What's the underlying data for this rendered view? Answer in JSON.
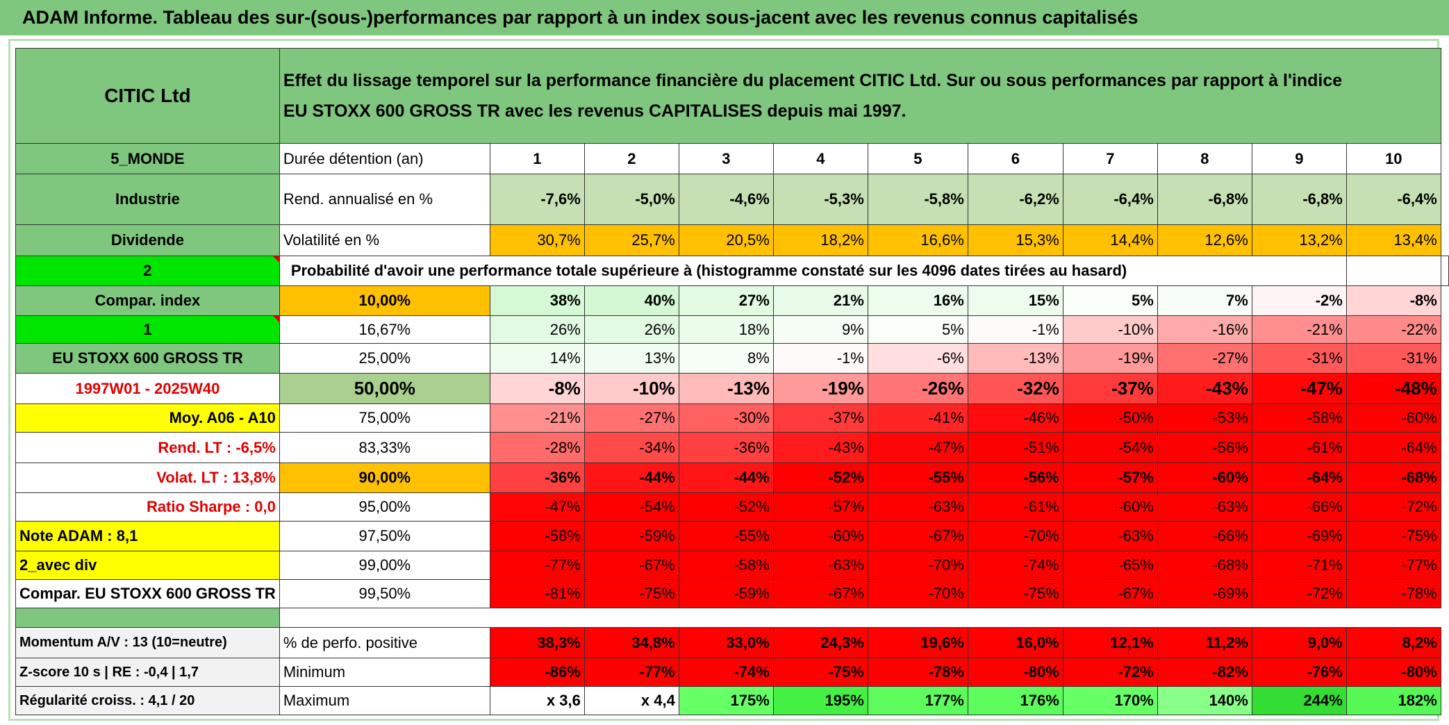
{
  "title": "ADAM Informe. Tableau des sur-(sous-)performances par rapport à un index sous-jacent avec les revenus connus capitalisés",
  "header": {
    "name": "CITIC Ltd",
    "description": [
      "Effet du lissage temporel sur la performance financière du placement CITIC Ltd. Sur ou sous performances par rapport à l'indice",
      "EU STOXX 600 GROSS TR avec les revenus CAPITALISES depuis mai 1997."
    ]
  },
  "rows": [
    {
      "left": "5_MONDE",
      "label": "Durée détention (an)",
      "cells": [
        "1",
        "2",
        "3",
        "4",
        "5",
        "6",
        "7",
        "8",
        "9",
        "10"
      ]
    },
    {
      "left": "Industrie",
      "label": "Rend. annualisé en %",
      "fill": "#c6e0b4",
      "cells": [
        "-7,6%",
        "-5,0%",
        "-4,6%",
        "-5,3%",
        "-5,8%",
        "-6,2%",
        "-6,4%",
        "-6,8%",
        "-6,8%",
        "-6,4%"
      ]
    },
    {
      "left": "Dividende",
      "label": "Volatilité en %",
      "fill": "#ffc000",
      "cells": [
        "30,7%",
        "25,7%",
        "20,5%",
        "18,2%",
        "16,6%",
        "15,3%",
        "14,4%",
        "12,6%",
        "13,2%",
        "13,4%"
      ]
    },
    {
      "left": "2",
      "label": "Probabilité d'avoir une performance totale supérieure à (histogramme constaté sur les 4096 dates tirées au hasard)"
    },
    {
      "left": "Compar. index",
      "quantile": "10,00%",
      "cells": [
        "38%",
        "40%",
        "27%",
        "21%",
        "16%",
        "15%",
        "5%",
        "7%",
        "-2%",
        "-8%"
      ]
    },
    {
      "left": "1",
      "quantile": "16,67%",
      "cells": [
        "26%",
        "26%",
        "18%",
        "9%",
        "5%",
        "-1%",
        "-10%",
        "-16%",
        "-21%",
        "-22%"
      ]
    },
    {
      "left": "EU STOXX 600 GROSS TR",
      "quantile": "25,00%",
      "cells": [
        "14%",
        "13%",
        "8%",
        "-1%",
        "-6%",
        "-13%",
        "-19%",
        "-27%",
        "-31%",
        "-31%"
      ]
    },
    {
      "left": "1997W01 - 2025W40",
      "quantile": "50,00%",
      "cells": [
        "-8%",
        "-10%",
        "-13%",
        "-19%",
        "-26%",
        "-32%",
        "-37%",
        "-43%",
        "-47%",
        "-48%"
      ]
    },
    {
      "left": "Moy. A06 - A10",
      "quantile": "75,00%",
      "cells": [
        "-21%",
        "-27%",
        "-30%",
        "-37%",
        "-41%",
        "-46%",
        "-50%",
        "-53%",
        "-58%",
        "-60%"
      ]
    },
    {
      "left": "Rend. LT :   -6,5%",
      "quantile": "83,33%",
      "cells": [
        "-28%",
        "-34%",
        "-36%",
        "-43%",
        "-47%",
        "-51%",
        "-54%",
        "-56%",
        "-61%",
        "-64%"
      ]
    },
    {
      "left": "Volat. LT :   13,8%",
      "quantile": "90,00%",
      "cells": [
        "-36%",
        "-44%",
        "-44%",
        "-52%",
        "-55%",
        "-56%",
        "-57%",
        "-60%",
        "-64%",
        "-68%"
      ]
    },
    {
      "left": "Ratio Sharpe :    0,0",
      "quantile": "95,00%",
      "cells": [
        "-47%",
        "-54%",
        "-52%",
        "-57%",
        "-63%",
        "-61%",
        "-60%",
        "-63%",
        "-66%",
        "-72%"
      ]
    },
    {
      "left": "Note ADAM : 8,1",
      "quantile": "97,50%",
      "cells": [
        "-58%",
        "-59%",
        "-55%",
        "-60%",
        "-67%",
        "-70%",
        "-63%",
        "-66%",
        "-69%",
        "-75%"
      ]
    },
    {
      "left": "2_avec div",
      "quantile": "99,00%",
      "cells": [
        "-77%",
        "-67%",
        "-58%",
        "-63%",
        "-70%",
        "-74%",
        "-65%",
        "-68%",
        "-71%",
        "-77%"
      ]
    },
    {
      "left": "Compar. EU STOXX 600 GROSS TR",
      "quantile": "99,50%",
      "cells": [
        "-81%",
        "-75%",
        "-59%",
        "-67%",
        "-70%",
        "-75%",
        "-67%",
        "-69%",
        "-72%",
        "-78%"
      ]
    },
    {
      "left": "Momentum A/V : 13 (10=neutre)",
      "label": "% de perfo. positive",
      "fill": "#ff0000",
      "cells": [
        "38,3%",
        "34,8%",
        "33,0%",
        "24,3%",
        "19,6%",
        "16,0%",
        "12,1%",
        "11,2%",
        "9,0%",
        "8,2%"
      ]
    },
    {
      "left": "Z-score 10 s | RE : -0,4 | 1,7",
      "label": "Minimum",
      "fill": "#ff0000",
      "cells": [
        "-86%",
        "-77%",
        "-74%",
        "-75%",
        "-78%",
        "-80%",
        "-72%",
        "-82%",
        "-76%",
        "-80%"
      ]
    },
    {
      "left": "Régularité croiss. : 4,1 / 20",
      "label": "Maximum",
      "fills": [
        "#ffffff",
        "#ffffff",
        "#66ff66",
        "#44f044",
        "#5cfc5c",
        "#5cfc5c",
        "#66ff66",
        "#88ff88",
        "#33dd33",
        "#55f855"
      ],
      "cells": [
        "x 3,6",
        "x 4,4",
        "175%",
        "195%",
        "177%",
        "176%",
        "170%",
        "140%",
        "244%",
        "182%"
      ]
    }
  ]
}
